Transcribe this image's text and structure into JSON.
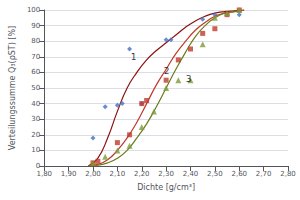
{
  "chart_data": {
    "type": "scatter",
    "xlabel": "Dichte [g/cm³]",
    "ylabel": "Verteilungssumme Q₃(ρST) [%]",
    "xlim": [
      1.8,
      2.8
    ],
    "ylim": [
      0,
      100
    ],
    "xticks": [
      {
        "value": 1.8,
        "label": "1,80"
      },
      {
        "value": 1.9,
        "label": "1,90"
      },
      {
        "value": 2.0,
        "label": "2,00"
      },
      {
        "value": 2.1,
        "label": "2,10"
      },
      {
        "value": 2.2,
        "label": "2,20"
      },
      {
        "value": 2.3,
        "label": "2,30"
      },
      {
        "value": 2.4,
        "label": "2,40"
      },
      {
        "value": 2.5,
        "label": "2,50"
      },
      {
        "value": 2.6,
        "label": "2,60"
      },
      {
        "value": 2.7,
        "label": "2,70"
      },
      {
        "value": 2.8,
        "label": "2,80"
      }
    ],
    "yticks": [
      0,
      10,
      20,
      30,
      40,
      50,
      60,
      70,
      80,
      90,
      100
    ],
    "grid": "y",
    "series": [
      {
        "type": "scatter",
        "marker": "diamond",
        "color": "#4472C4",
        "x": [
          2.0,
          2.05,
          2.1,
          2.12,
          2.15,
          2.2,
          2.3,
          2.32,
          2.45,
          2.5,
          2.6
        ],
        "values": [
          18,
          38,
          39,
          40,
          75,
          40,
          81,
          81,
          94,
          97,
          97
        ]
      },
      {
        "type": "scatter",
        "marker": "square",
        "color": "#C0392B",
        "x": [
          2.0,
          2.02,
          2.1,
          2.15,
          2.2,
          2.22,
          2.3,
          2.35,
          2.4,
          2.45,
          2.5,
          2.55,
          2.6
        ],
        "values": [
          2,
          3,
          15,
          20,
          40,
          42,
          55,
          68,
          75,
          85,
          88,
          97,
          100
        ]
      },
      {
        "type": "scatter",
        "marker": "triangle",
        "color": "#7D9B3A",
        "x": [
          2.0,
          2.05,
          2.1,
          2.15,
          2.2,
          2.25,
          2.3,
          2.35,
          2.4,
          2.45,
          2.5,
          2.55,
          2.6
        ],
        "values": [
          2,
          6,
          10,
          13,
          25,
          35,
          50,
          55,
          55,
          78,
          95,
          98,
          100
        ]
      },
      {
        "type": "line",
        "line_style": "solid",
        "color": "#8B1010",
        "x": [
          1.98,
          2.02,
          2.06,
          2.1,
          2.14,
          2.18,
          2.22,
          2.26,
          2.3,
          2.34,
          2.38,
          2.42,
          2.46,
          2.5,
          2.54,
          2.58,
          2.62
        ],
        "values": [
          0,
          5,
          18,
          35,
          50,
          60,
          68,
          74,
          79,
          84,
          89,
          93,
          96,
          98,
          99,
          99.5,
          100
        ]
      },
      {
        "type": "line",
        "line_style": "solid",
        "color": "#C0392B",
        "x": [
          1.98,
          2.02,
          2.06,
          2.1,
          2.14,
          2.18,
          2.22,
          2.26,
          2.3,
          2.34,
          2.38,
          2.42,
          2.46,
          2.5,
          2.54,
          2.58,
          2.62
        ],
        "values": [
          0,
          1,
          4,
          10,
          18,
          28,
          40,
          52,
          62,
          72,
          80,
          87,
          92,
          96,
          98,
          99,
          100
        ]
      },
      {
        "type": "line",
        "line_style": "solid",
        "color": "#6B7B1A",
        "x": [
          1.98,
          2.02,
          2.06,
          2.1,
          2.14,
          2.18,
          2.22,
          2.26,
          2.3,
          2.34,
          2.38,
          2.42,
          2.46,
          2.5,
          2.54,
          2.58,
          2.62
        ],
        "values": [
          0,
          0.5,
          2,
          5,
          10,
          18,
          27,
          38,
          50,
          62,
          73,
          83,
          90,
          95,
          98,
          99,
          100
        ]
      }
    ],
    "annotations": [
      {
        "text": "1",
        "x": 2.155,
        "y": 67
      },
      {
        "text": "2",
        "x": 2.29,
        "y": 58
      },
      {
        "text": "3",
        "x": 2.38,
        "y": 53
      }
    ]
  }
}
